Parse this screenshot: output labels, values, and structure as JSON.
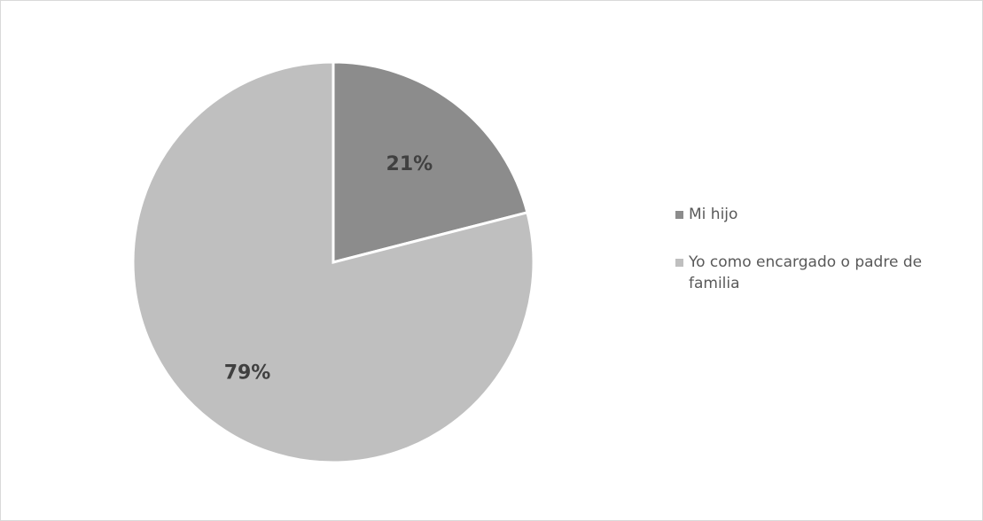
{
  "chart_data": {
    "type": "pie",
    "title": "",
    "categories": [
      "Mi hijo",
      "Yo como encargado o padre de familia"
    ],
    "values": [
      21,
      79
    ],
    "data_labels": [
      "21%",
      "79%"
    ],
    "colors": [
      "#8c8c8c",
      "#bfbfbf"
    ],
    "legend_position": "right",
    "start_angle_deg": 0,
    "direction": "clockwise"
  }
}
